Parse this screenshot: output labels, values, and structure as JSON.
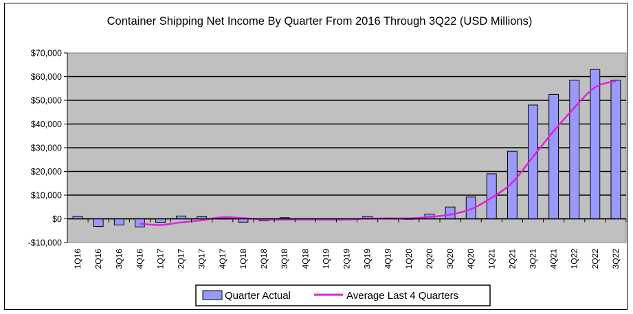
{
  "chart_data": {
    "type": "bar",
    "title": "Container Shipping Net Income By Quarter From 2016 Through 3Q22 (USD Millions)",
    "xlabel": "",
    "ylabel": "",
    "ylim": [
      -10000,
      70000
    ],
    "yticks": [
      -10000,
      0,
      10000,
      20000,
      30000,
      40000,
      50000,
      60000,
      70000
    ],
    "ytick_labels": [
      "-$10,000",
      "$0",
      "$10,000",
      "$20,000",
      "$30,000",
      "$40,000",
      "$50,000",
      "$60,000",
      "$70,000"
    ],
    "grid": true,
    "legend_position": "bottom",
    "categories": [
      "1Q16",
      "2Q16",
      "3Q16",
      "4Q16",
      "1Q17",
      "2Q17",
      "3Q17",
      "4Q17",
      "1Q18",
      "2Q18",
      "3Q18",
      "4Q18",
      "1Q19",
      "2Q19",
      "3Q19",
      "4Q19",
      "1Q20",
      "2Q20",
      "3Q20",
      "4Q20",
      "1Q21",
      "2Q21",
      "3Q21",
      "4Q21",
      "1Q22",
      "2Q22",
      "3Q22"
    ],
    "series": [
      {
        "name": "Quarter Actual",
        "type": "bar",
        "color": "#9999ff",
        "values": [
          1000,
          -3200,
          -2600,
          -3400,
          -1500,
          1200,
          900,
          200,
          -1400,
          -800,
          500,
          -300,
          -300,
          -200,
          1000,
          300,
          100,
          2000,
          5000,
          9200,
          19000,
          28500,
          48000,
          52500,
          58500,
          63000,
          58500
        ]
      },
      {
        "name": "Average Last 4 Quarters",
        "type": "line",
        "color": "#e020e0",
        "values": [
          null,
          null,
          null,
          -2000,
          -2600,
          -1500,
          -600,
          700,
          300,
          -300,
          -300,
          -300,
          -300,
          -300,
          100,
          200,
          200,
          800,
          1800,
          4100,
          8900,
          15300,
          26200,
          37000,
          46900,
          55500,
          58100
        ]
      }
    ]
  }
}
